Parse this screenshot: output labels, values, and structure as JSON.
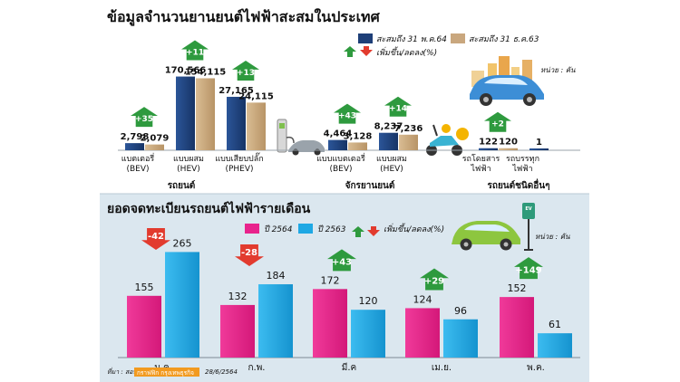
{
  "colors": {
    "top_bg": "#ffffff",
    "bottom_bg": "#dbe7ef",
    "series_2564_m5": "#1e3f78",
    "series_2563_m12": "#c9a77e",
    "monthly_2564": "#e8238c",
    "monthly_2563": "#1ea8e4",
    "arrow_up": "#2e9a3e",
    "arrow_down": "#e23b2e"
  },
  "top": {
    "title": "ข้อมูลจำนวนยานยนต์ไฟฟ้าสะสมในประเทศ",
    "legend_a": "สะสมถึง 31 พ.ค.64",
    "legend_b": "สะสมถึง 31 ธ.ค.63",
    "legend_change": "เพิ่มขึ้น/ลดลง(%)",
    "unit": "หน่วย : คัน",
    "group_cars": "รถยนต์",
    "group_motorcycles": "จักรยานยนต์",
    "group_other": "รถยนต์ชนิดอื่นๆ"
  },
  "bottom": {
    "title": "ยอดจดทะเบียนรถยนต์ไฟฟ้ารายเดือน",
    "legend_2564": "ปี 2564",
    "legend_2563": "ปี 2563",
    "legend_change": "เพิ่มขึ้น/ลดลง(%)",
    "unit": "หน่วย : คัน",
    "source": "ที่มา : สอท.",
    "source_credit": "กราฟฟิก กรุงเทพธุรกิจ",
    "date": "28/6/2564"
  },
  "chart_data": [
    {
      "type": "bar",
      "title": "ข้อมูลจำนวนยานยนต์ไฟฟ้าสะสมในประเทศ",
      "categories": [
        "แบตเตอรี่ (BEV)",
        "แบบผสม (HEV)",
        "แบบเสียบปลั๊ก (PHEV)",
        "แบบแบตเตอรี่ (BEV)",
        "แบบผสม (HEV)",
        "รถโดยสาร ไฟฟ้า",
        "รถบรรทุก ไฟฟ้า"
      ],
      "groups": [
        {
          "name": "รถยนต์",
          "categories": [
            0,
            1,
            2
          ]
        },
        {
          "name": "จักรยานยนต์",
          "categories": [
            3,
            4
          ]
        },
        {
          "name": "รถยนต์ชนิดอื่นๆ",
          "categories": [
            5,
            6
          ]
        }
      ],
      "series": [
        {
          "name": "สะสมถึง 31 พ.ค.64",
          "values": [
            2798,
            170566,
            27165,
            4464,
            8237,
            122,
            1
          ]
        },
        {
          "name": "สะสมถึง 31 ธ.ค.63",
          "values": [
            2079,
            154115,
            24115,
            3128,
            7236,
            120,
            null
          ]
        }
      ],
      "value_labels": [
        [
          "2,798",
          "170,566",
          "27,165",
          "4,464",
          "8,237",
          "122",
          "1"
        ],
        [
          "2,079",
          "154,115",
          "24,115",
          "3,128",
          "7,236",
          "120",
          ""
        ]
      ],
      "change_pct_labels": [
        "+35",
        "+11",
        "+13",
        "+43",
        "+14",
        "+2",
        ""
      ],
      "unit": "หน่วย : คัน"
    },
    {
      "type": "bar",
      "title": "ยอดจดทะเบียนรถยนต์ไฟฟ้ารายเดือน",
      "categories": [
        "ม.ค.",
        "ก.พ.",
        "มี.ค",
        "เม.ย.",
        "พ.ค."
      ],
      "series": [
        {
          "name": "ปี 2564",
          "values": [
            155,
            132,
            172,
            124,
            152
          ]
        },
        {
          "name": "ปี 2563",
          "values": [
            265,
            184,
            120,
            96,
            61
          ]
        }
      ],
      "change_pct_labels": [
        "-42",
        "-28",
        "+43",
        "+29",
        "+149"
      ],
      "change_direction": [
        "down",
        "down",
        "up",
        "up",
        "up"
      ],
      "unit": "หน่วย : คัน"
    }
  ]
}
